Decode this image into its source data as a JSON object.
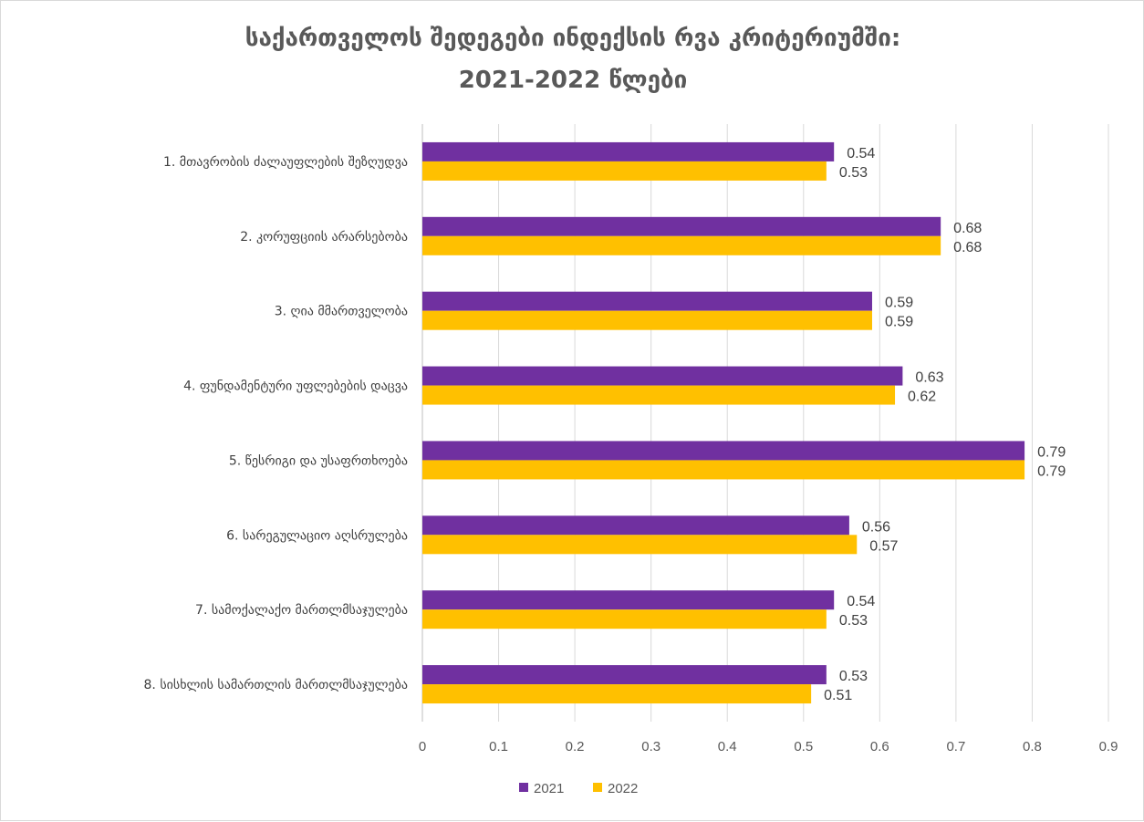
{
  "chart_data": {
    "type": "bar",
    "orientation": "horizontal",
    "title_lines": [
      "საქართველოს შედეგები ინდექსის რვა კრიტერიუმში:",
      "2021-2022 წლები"
    ],
    "categories": [
      "1. მთავრობის  ძალაუფლების შეზღუდვა",
      "2. კორუფციის არარსებობა",
      "3. ღია მმართველობა",
      "4. ფუნდამენტური უფლებების დაცვა",
      "5. წესრიგი და უსაფრთხოება",
      "6. სარეგულაციო აღსრულება",
      "7. სამოქალაქო მართლმსაჯულება",
      "8. სისხლის სამართლის  მართლმსაჯულება"
    ],
    "series": [
      {
        "name": "2021",
        "color": "#7030a0",
        "values": [
          0.54,
          0.68,
          0.59,
          0.63,
          0.79,
          0.56,
          0.54,
          0.53
        ]
      },
      {
        "name": "2022",
        "color": "#ffc000",
        "values": [
          0.53,
          0.68,
          0.59,
          0.62,
          0.79,
          0.57,
          0.53,
          0.51
        ]
      }
    ],
    "xlim": [
      0,
      0.9
    ],
    "xticks": [
      "0",
      "0.1",
      "0.2",
      "0.3",
      "0.4",
      "0.5",
      "0.6",
      "0.7",
      "0.8",
      "0.9"
    ],
    "grid": "vertical",
    "legend_position": "bottom-left"
  }
}
